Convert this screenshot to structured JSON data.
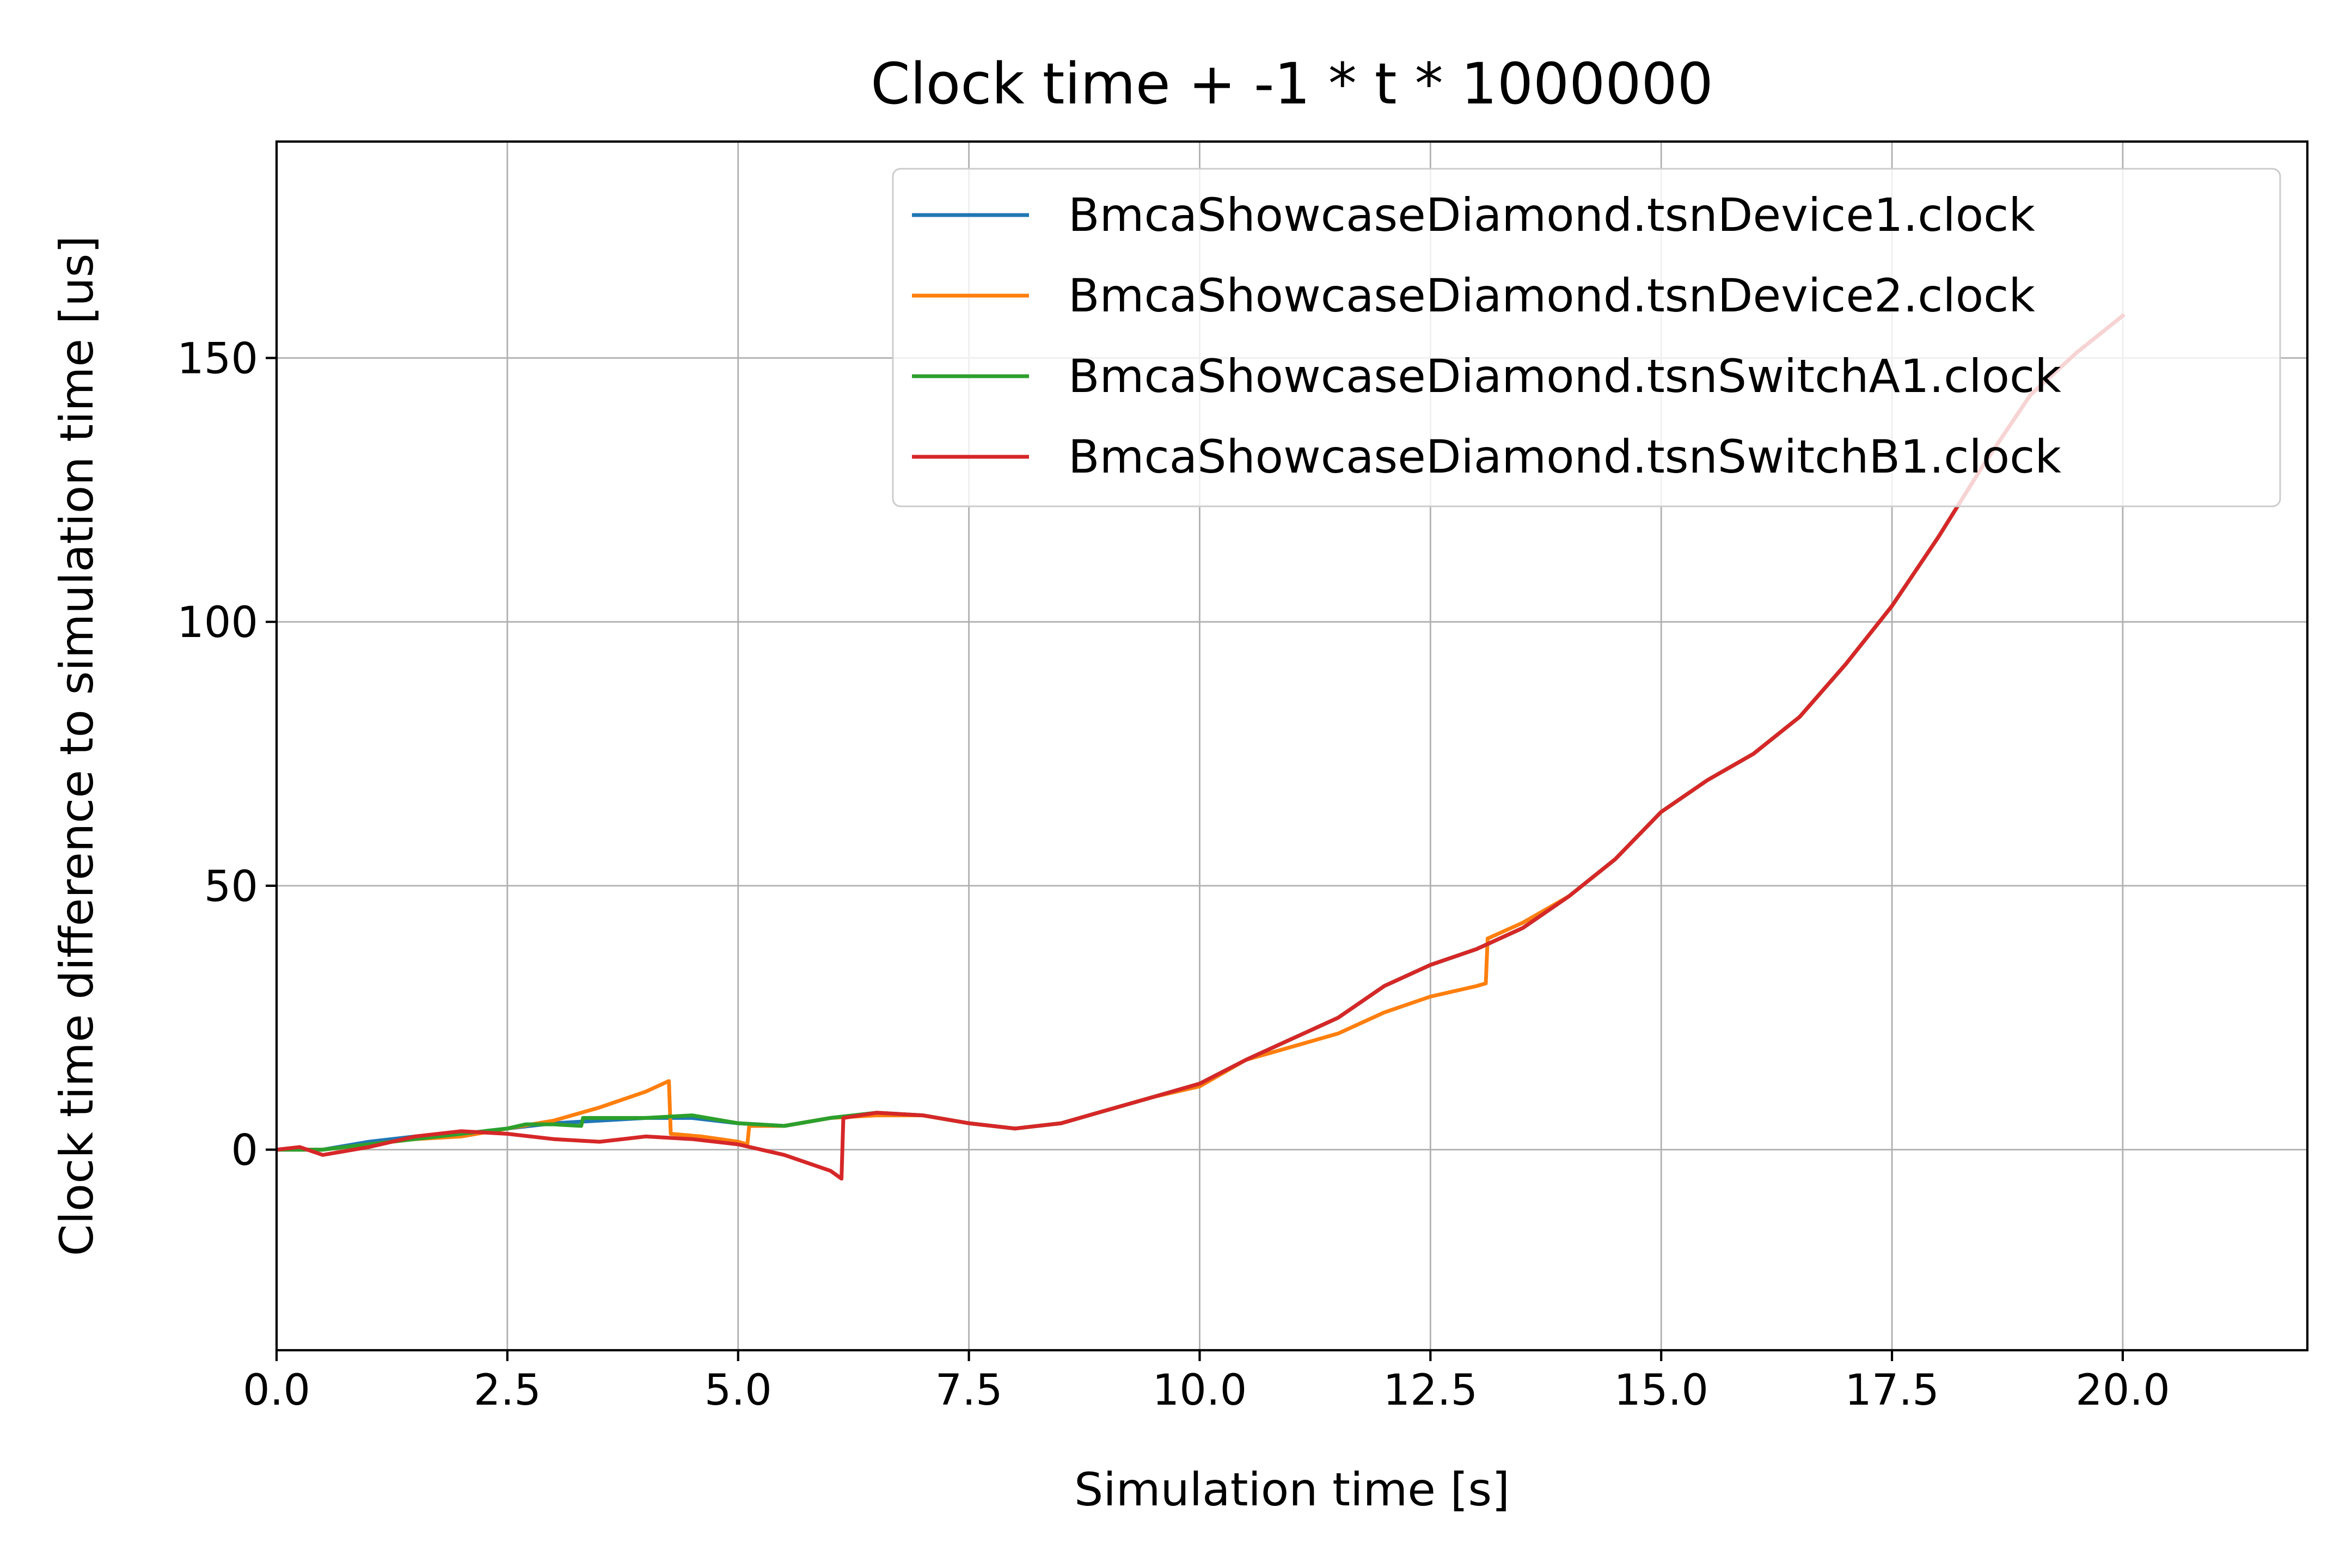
{
  "chart_data": {
    "type": "line",
    "title": "Clock time + -1 * t * 1000000",
    "xlabel": "Simulation time [s]",
    "ylabel": "Clock time difference to simulation time [us]",
    "xlim": [
      0,
      22
    ],
    "ylim": [
      -38,
      191
    ],
    "xticks": [
      0,
      2.5,
      5,
      7.5,
      10,
      12.5,
      15,
      17.5,
      20
    ],
    "xtick_labels": [
      "0.0",
      "2.5",
      "5.0",
      "7.5",
      "10.0",
      "12.5",
      "15.0",
      "17.5",
      "20.0"
    ],
    "yticks": [
      0,
      50,
      100,
      150
    ],
    "ytick_labels": [
      "0",
      "50",
      "100",
      "150"
    ],
    "grid": true,
    "legend_position": "top-right",
    "series": [
      {
        "name": "BmcaShowcaseDiamond.tsnDevice1.clock",
        "color": "#1f77b4",
        "points": [
          [
            0,
            0
          ],
          [
            0.5,
            0
          ],
          [
            1,
            1.5
          ],
          [
            1.5,
            2.5
          ],
          [
            2,
            3
          ],
          [
            2.5,
            4
          ],
          [
            3,
            5
          ],
          [
            3.5,
            5.5
          ],
          [
            4,
            6
          ],
          [
            4.5,
            6
          ],
          [
            5,
            5
          ],
          [
            5.5,
            4.5
          ],
          [
            6,
            6
          ],
          [
            6.5,
            7
          ],
          [
            7,
            6.5
          ],
          [
            7.5,
            5
          ],
          [
            8,
            4
          ],
          [
            8.5,
            5
          ],
          [
            9,
            7.5
          ],
          [
            9.5,
            10
          ],
          [
            10,
            12.5
          ],
          [
            10.5,
            17
          ],
          [
            11,
            21
          ],
          [
            11.5,
            25
          ],
          [
            12,
            31
          ],
          [
            12.5,
            35
          ],
          [
            13,
            38
          ],
          [
            13.5,
            42
          ],
          [
            14,
            48
          ],
          [
            14.5,
            55
          ],
          [
            15,
            64
          ],
          [
            15.5,
            70
          ],
          [
            16,
            75
          ],
          [
            16.5,
            82
          ],
          [
            17,
            92
          ],
          [
            17.5,
            103
          ],
          [
            18,
            116
          ],
          [
            18.5,
            130
          ],
          [
            19,
            143
          ],
          [
            19.5,
            151
          ],
          [
            20,
            158
          ]
        ]
      },
      {
        "name": "BmcaShowcaseDiamond.tsnDevice2.clock",
        "color": "#ff7f0e",
        "points": [
          [
            0,
            0
          ],
          [
            0.5,
            0
          ],
          [
            1,
            1
          ],
          [
            1.5,
            2
          ],
          [
            2,
            2.5
          ],
          [
            2.5,
            4
          ],
          [
            3,
            5.5
          ],
          [
            3.5,
            8
          ],
          [
            4,
            11
          ],
          [
            4.25,
            13
          ],
          [
            4.27,
            3
          ],
          [
            4.6,
            2.5
          ],
          [
            5,
            1.5
          ],
          [
            5.1,
            1
          ],
          [
            5.12,
            4.5
          ],
          [
            5.5,
            4.5
          ],
          [
            6,
            6
          ],
          [
            6.5,
            6.5
          ],
          [
            7,
            6.5
          ],
          [
            7.5,
            5
          ],
          [
            8,
            4
          ],
          [
            8.5,
            5
          ],
          [
            9,
            7.5
          ],
          [
            9.5,
            10
          ],
          [
            10,
            12
          ],
          [
            10.5,
            17
          ],
          [
            11,
            19.5
          ],
          [
            11.5,
            22
          ],
          [
            12,
            26
          ],
          [
            12.5,
            29
          ],
          [
            13,
            31
          ],
          [
            13.1,
            31.5
          ],
          [
            13.12,
            40
          ],
          [
            13.5,
            43
          ],
          [
            14,
            48
          ],
          [
            14.5,
            55
          ],
          [
            15,
            64
          ],
          [
            15.5,
            70
          ],
          [
            16,
            75
          ],
          [
            16.5,
            82
          ],
          [
            17,
            92
          ],
          [
            17.5,
            103
          ],
          [
            18,
            116
          ],
          [
            18.5,
            130
          ],
          [
            19,
            143
          ],
          [
            19.5,
            151
          ],
          [
            20,
            158
          ]
        ]
      },
      {
        "name": "BmcaShowcaseDiamond.tsnSwitchA1.clock",
        "color": "#2ca02c",
        "points": [
          [
            0,
            0
          ],
          [
            0.5,
            0
          ],
          [
            1,
            1
          ],
          [
            1.5,
            2
          ],
          [
            2,
            3
          ],
          [
            2.5,
            4
          ],
          [
            2.7,
            4.8
          ],
          [
            3,
            4.8
          ],
          [
            3.3,
            4.5
          ],
          [
            3.32,
            6
          ],
          [
            3.5,
            6
          ],
          [
            4,
            6
          ],
          [
            4.5,
            6.5
          ],
          [
            5,
            5
          ],
          [
            5.5,
            4.5
          ],
          [
            6,
            6
          ],
          [
            6.5,
            7
          ],
          [
            7,
            6.5
          ],
          [
            7.5,
            5
          ],
          [
            8,
            4
          ],
          [
            8.5,
            5
          ],
          [
            9,
            7.5
          ],
          [
            9.5,
            10
          ],
          [
            10,
            12.5
          ],
          [
            10.5,
            17
          ],
          [
            11,
            21
          ],
          [
            11.5,
            25
          ],
          [
            12,
            31
          ],
          [
            12.5,
            35
          ],
          [
            13,
            38
          ],
          [
            13.5,
            42
          ],
          [
            14,
            48
          ],
          [
            14.5,
            55
          ],
          [
            15,
            64
          ],
          [
            15.5,
            70
          ],
          [
            16,
            75
          ],
          [
            16.5,
            82
          ],
          [
            17,
            92
          ],
          [
            17.5,
            103
          ],
          [
            18,
            116
          ],
          [
            18.5,
            130
          ],
          [
            19,
            143
          ],
          [
            19.5,
            151
          ],
          [
            20,
            158
          ]
        ]
      },
      {
        "name": "BmcaShowcaseDiamond.tsnSwitchB1.clock",
        "color": "#d62728",
        "points": [
          [
            0,
            0
          ],
          [
            0.25,
            0.5
          ],
          [
            0.5,
            -1
          ],
          [
            1,
            0.5
          ],
          [
            1.5,
            2.5
          ],
          [
            2,
            3.5
          ],
          [
            2.5,
            3
          ],
          [
            3,
            2
          ],
          [
            3.5,
            1.5
          ],
          [
            4,
            2.5
          ],
          [
            4.5,
            2
          ],
          [
            5,
            1
          ],
          [
            5.5,
            -1
          ],
          [
            6,
            -4
          ],
          [
            6.12,
            -5.5
          ],
          [
            6.14,
            6
          ],
          [
            6.5,
            7
          ],
          [
            7,
            6.5
          ],
          [
            7.5,
            5
          ],
          [
            8,
            4
          ],
          [
            8.5,
            5
          ],
          [
            9,
            7.5
          ],
          [
            9.5,
            10
          ],
          [
            10,
            12.5
          ],
          [
            10.5,
            17
          ],
          [
            11,
            21
          ],
          [
            11.5,
            25
          ],
          [
            12,
            31
          ],
          [
            12.5,
            35
          ],
          [
            13,
            38
          ],
          [
            13.5,
            42
          ],
          [
            14,
            48
          ],
          [
            14.5,
            55
          ],
          [
            15,
            64
          ],
          [
            15.5,
            70
          ],
          [
            16,
            75
          ],
          [
            16.5,
            82
          ],
          [
            17,
            92
          ],
          [
            17.5,
            103
          ],
          [
            18,
            116
          ],
          [
            18.5,
            130
          ],
          [
            19,
            143
          ],
          [
            19.5,
            151
          ],
          [
            20,
            158
          ]
        ]
      }
    ]
  }
}
